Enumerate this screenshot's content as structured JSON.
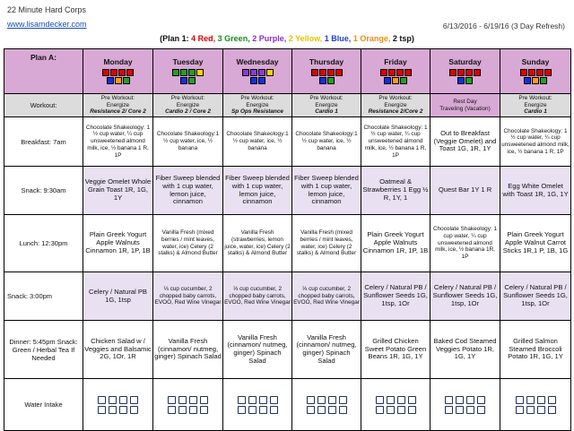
{
  "header": {
    "title": "22 Minute Hard Corps",
    "link": "www.lisamdecker.com",
    "dates": "6/13/2016 - 6/19/16 (3 Day Refresh)",
    "plan_open": "(Plan 1:",
    "plan_parts": [
      {
        "text": "4 Red,",
        "color": "#d40000"
      },
      {
        "text": "3 Green,",
        "color": "#1a8a1a"
      },
      {
        "text": "2 Purple,",
        "color": "#8a2bd0"
      },
      {
        "text": "2 Yellow,",
        "color": "#e6c200"
      },
      {
        "text": "1 Blue,",
        "color": "#1f3fd0"
      },
      {
        "text": "1 Orange,",
        "color": "#ee8a10"
      },
      {
        "text": "2 tsp)",
        "color": "#111111"
      }
    ]
  },
  "colors": {
    "red": "#e00000",
    "green": "#22a022",
    "purple": "#8a3bd0",
    "yellow": "#ffd400",
    "blue": "#1030e0",
    "orange": "#ff9a1a"
  },
  "table": {
    "corner": "Plan A:",
    "days": [
      "Monday",
      "Tuesday",
      "Wednesday",
      "Thursday",
      "Friday",
      "Saturday",
      "Sunday"
    ],
    "square_rows": [
      [
        [
          "red",
          "red",
          "red",
          "red"
        ],
        [
          "green",
          "green",
          "green",
          "yellow"
        ],
        [
          "purple",
          "purple",
          "purple",
          "yellow"
        ],
        [
          "red",
          "red",
          "red",
          "red"
        ],
        [
          "red",
          "red",
          "red",
          "red"
        ],
        [
          "red",
          "red",
          "red",
          "red"
        ],
        [
          "red",
          "red",
          "red",
          "red"
        ]
      ],
      [
        [
          "blue",
          "orange",
          "green"
        ],
        [
          "blue",
          "green"
        ],
        [
          "blue",
          "blue"
        ],
        [
          "blue",
          "green"
        ],
        [
          "blue",
          "orange",
          "green"
        ],
        [
          "blue",
          "green"
        ],
        [
          "blue",
          "orange",
          "green"
        ]
      ]
    ],
    "rows": [
      {
        "label": "Workout:",
        "cells": [
          {
            "l1": "Pre Workout:",
            "l2": "Energize",
            "l3": "Resistance 2/ Core 2"
          },
          {
            "l1": "Pre Workout:",
            "l2": "Energize",
            "l3": "Cardio 2 / Core 2"
          },
          {
            "l1": "Pre Workout:",
            "l2": "Energize",
            "l3": "Sp Ops Resistance"
          },
          {
            "l1": "Pre Workout:",
            "l2": "Energize",
            "l3": "Cardio 1"
          },
          {
            "l1": "Pre Workout:",
            "l2": "Energize",
            "l3": "Resistance 2/Core 2"
          },
          {
            "l1": "Rest Day",
            "l2": "Traveling (Vacation)",
            "l3": ""
          },
          {
            "l1": "Pre Workout:",
            "l2": "Energize",
            "l3": "Cardio 1"
          }
        ]
      },
      {
        "label": "Breakfast: 7am",
        "cells": [
          "Chocolate Shakeology: 1 ½ cup water, ¼ cup unsweetened almond milk, ice, ½ banana 1 R, 1P",
          "Chocolate Shakeology:1 ½ cup water, ice, ½ banana",
          "Chocolate Shakeology:1 ½ cup water, ice, ½ banana",
          "Chocolate Shakeology:1 ½ cup water, ice, ½ banana",
          "Chocolate Shakeology: 1 ½ cup water, ¼ cup unsweetened almond milk, ice, ½ banana 1 R, 1P",
          "Out to Breakfast (Veggie Omelet) and Toast 1G, 1R, 1Y",
          "Chocolate Shakeology: 1 ½ cup water, ¼ cup unsweetened almond milk, ice, ½ banana 1 R, 1P"
        ]
      },
      {
        "label": "Snack: 9:30am",
        "cells": [
          "Veggie Omelet Whole Grain Toast 1R, 1G, 1Y",
          "Fiber Sweep blended with 1 cup water, lemon juice, cinnamon",
          "Fiber Sweep blended with 1 cup water, lemon juice, cinnamon",
          "Fiber Sweep blended with 1 cup water, lemon juice, cinnamon",
          "Oatmeal & Strawberries 1 Egg ½ R, 1Y, 1",
          "Quest Bar 1Y 1 R",
          "Egg White Omelet with Toast 1R, 1G, 1Y"
        ]
      },
      {
        "label": "Lunch: 12:30pm",
        "cells": [
          "Plain Greek Yogurt Apple Walnuts Cinnamon 1R, 1P, 1B",
          "Vanilla Fresh (mixed berries / mint leaves, water, ice) Celery (2 stalks) & Almond Butter",
          "Vanilla Fresh (strawberries, lemon juice, water, ice) Celery (2 stalks) & Almond Butter",
          "Vanilla Fresh (mixed berries / mint leaves, water, ice) Celery (2 stalks) & Almond Butter",
          "Plain Greek Yogurt Apple Walnuts Cinnamon 1R, 1P, 1B",
          "Chocolate Shakeology: 1 cup water, ¼ cup unsweetened almond milk, ice, ½ banana 1R, 1P",
          "Plain Greek Yogurt Apple Walnut Carrot Sticks 1R,1 P, 1B, 1G"
        ]
      },
      {
        "label": "Snack: 3:00pm",
        "cells": [
          "Celery / Natural PB 1G, 1tsp",
          "⅓ cup cucumber, 2 chopped baby carrots, EVOO, Red Wine Vinegar",
          "⅓ cup cucumber, 2 chopped baby carrots, EVOO, Red Wine Vinegar",
          "⅓ cup cucumber, 2 chopped baby carrots, EVOO, Red Wine Vinegar",
          "Celery / Natural PB / Sunflower Seeds 1G, 1tsp, 1Or",
          "Celery / Natural PB / Sunflower Seeds 1G, 1tsp, 1Or",
          "Celery / Natural PB / Sunflower Seeds 1G, 1tsp, 1Or"
        ]
      },
      {
        "label": "Dinner: 5:45pm Snack: Green / Herbal Tea If Needed",
        "cells": [
          "Chicken Salad w / Veggies and Balsamic 2G, 1Or, 1R",
          "Vanilla Fresh (cinnamon/ nutmeg, ginger) Spinach Salad",
          "Vanilla Fresh (cinnamon/ nutmeg, ginger) Spinach Salad",
          "Vanilla Fresh (cinnamon/ nutmeg, ginger) Spinach Salad",
          "Grilled Chicken Sweet Potato Green Beans 1R, 1G, 1Y",
          "Baked Cod Steamed Veggies Potato 1R, 1G, 1Y",
          "Grilled Salmon Steamed Broccoli Potato 1R, 1G, 1Y"
        ]
      },
      {
        "label": "Water Intake",
        "cells": []
      }
    ]
  }
}
